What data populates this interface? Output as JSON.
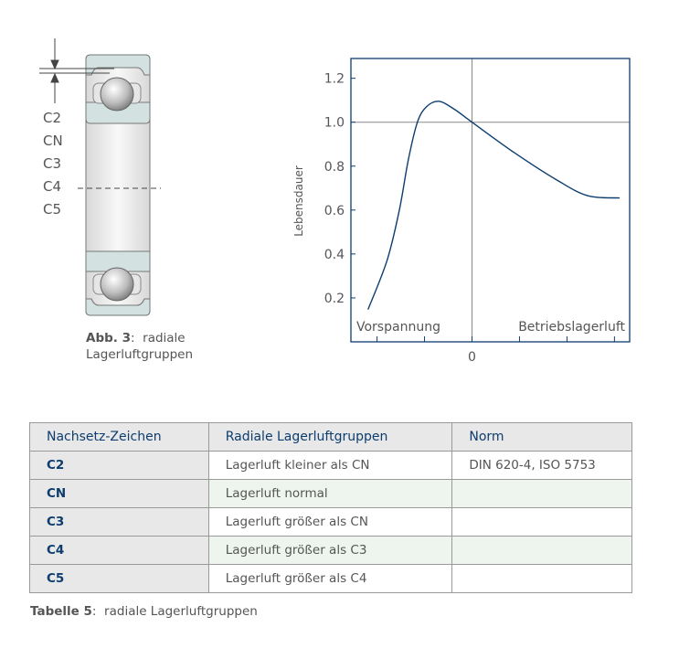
{
  "figure": {
    "clearance_labels": [
      "C2",
      "CN",
      "C3",
      "C4",
      "C5"
    ],
    "caption_label": "Abb. 3",
    "caption_text": "radiale",
    "caption_text2": "Lagerluftgruppen"
  },
  "chart_data": {
    "type": "line",
    "ylabel": "Lebensdauer",
    "xlabel": "",
    "x_tick_labels": [
      "",
      "",
      "0",
      "",
      "",
      ""
    ],
    "x_ticks": [
      -2,
      -1,
      0,
      1,
      2,
      3
    ],
    "y_ticks": [
      0.2,
      0.4,
      0.6,
      0.8,
      1.0,
      1.2
    ],
    "y_tick_labels": [
      "0.2",
      "0.4",
      "0.6",
      "0.8",
      "1.0",
      "1.2"
    ],
    "xlim": [
      -2.55,
      3.32
    ],
    "ylim": [
      0,
      1.29
    ],
    "region_labels": {
      "left": "Vorspannung",
      "right": "Betriebslagerluft"
    },
    "reference_lines": {
      "x": 0,
      "y": 1.0
    },
    "grid": false,
    "series": [
      {
        "color": "#0d3d6e",
        "x": [
          -2.19,
          -1.79,
          -1.53,
          -1.34,
          -1.15,
          -0.96,
          -0.7,
          -0.38,
          0,
          0.9,
          1.8,
          2.44,
          3.11
        ],
        "y": [
          0.147,
          0.37,
          0.6,
          0.83,
          1.0,
          1.07,
          1.095,
          1.06,
          1.0,
          0.86,
          0.735,
          0.665,
          0.655
        ]
      }
    ]
  },
  "table": {
    "headers": [
      "Nachsetz-Zeichen",
      "Radiale Lagerluftgruppen",
      "Norm"
    ],
    "rows": [
      [
        "C2",
        "Lagerluft kleiner als CN",
        "DIN 620-4, ISO 5753"
      ],
      [
        "CN",
        "Lagerluft normal",
        ""
      ],
      [
        "C3",
        "Lagerluft größer als CN",
        ""
      ],
      [
        "C4",
        "Lagerluft größer als C3",
        ""
      ],
      [
        "C5",
        "Lagerluft größer als C4",
        ""
      ]
    ],
    "caption_label": "Tabelle 5",
    "caption_text": "radiale Lagerluftgruppen"
  },
  "colors": {
    "accent": "#0d3d6e",
    "ring": "#d3e2e1",
    "header_bg": "#e8e8e8",
    "alt_row": "#eef5ee"
  }
}
